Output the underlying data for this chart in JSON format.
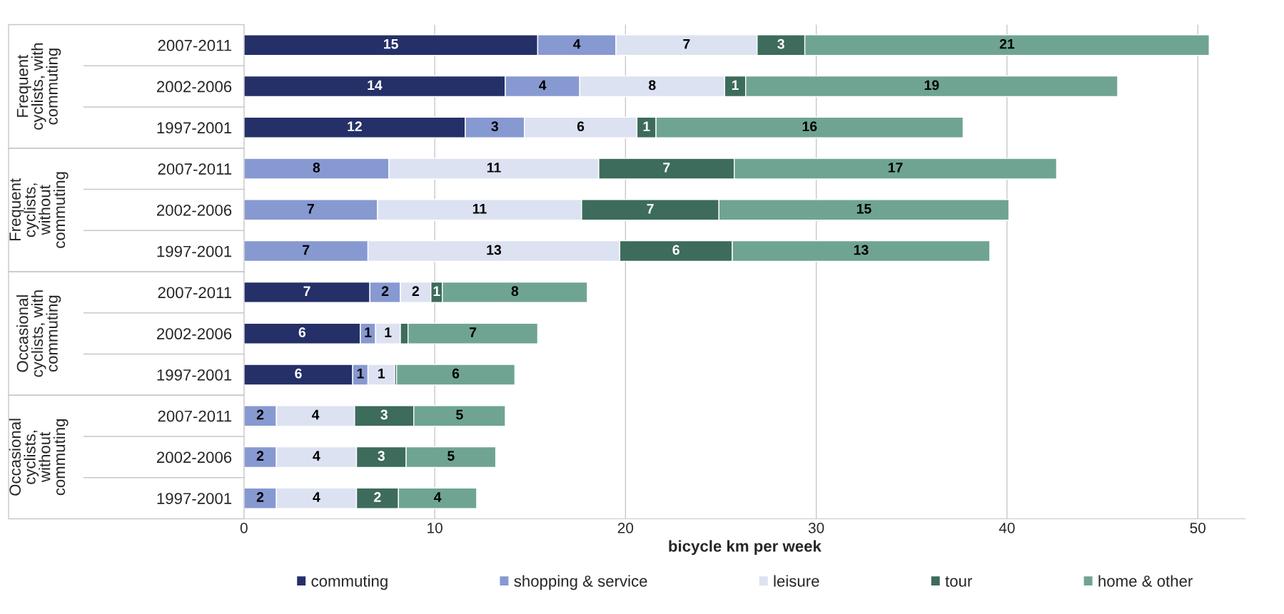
{
  "chart_data": {
    "type": "bar",
    "orientation": "horizontal",
    "stacked": true,
    "xlabel": "bicycle km per week",
    "categories": [
      "2007-2011",
      "2002-2006",
      "1997-2001",
      "2007-2011",
      "2002-2006",
      "1997-2001",
      "2007-2011",
      "2002-2006",
      "1997-2001",
      "2007-2011",
      "2002-2006",
      "1997-2001"
    ],
    "annotations": [
      "Frequent\ncyclists, with\ncommuting",
      "Frequent\ncyclists,\nwithout\ncommuting",
      "Occasional\ncyclists, with\ncommuting",
      "Occasional\ncyclists,\nwithout\ncommuting"
    ],
    "series": [
      {
        "name": "commuting",
        "color": "#253068",
        "values": [
          15.4,
          13.7,
          11.6,
          null,
          null,
          null,
          6.6,
          6.1,
          5.7,
          null,
          null,
          null
        ],
        "value_labels": [
          "15",
          "14",
          "12",
          null,
          null,
          null,
          "7",
          "6",
          "6",
          null,
          null,
          null
        ]
      },
      {
        "name": "shopping & service",
        "color": "#8799d1",
        "values": [
          4.1,
          3.9,
          3.1,
          7.6,
          7.0,
          6.5,
          1.6,
          0.8,
          0.8,
          1.7,
          1.7,
          1.7
        ],
        "value_labels": [
          "4",
          "4",
          "3",
          "8",
          "7",
          "7",
          "2",
          "1",
          "1",
          "2",
          "2",
          "2"
        ]
      },
      {
        "name": "leisure",
        "color": "#dde2f2",
        "values": [
          7.4,
          7.6,
          5.9,
          11.0,
          10.7,
          13.2,
          1.6,
          1.3,
          1.4,
          4.1,
          4.2,
          4.2
        ],
        "value_labels": [
          "7",
          "8",
          "6",
          "11",
          "11",
          "13",
          "2",
          "1",
          "1",
          "4",
          "4",
          "4"
        ]
      },
      {
        "name": "tour",
        "color": "#3d6b5c",
        "values": [
          2.5,
          1.1,
          1.0,
          7.1,
          7.2,
          5.9,
          0.6,
          0.4,
          0.1,
          3.1,
          2.6,
          2.2
        ],
        "value_labels": [
          "3",
          "1",
          "1",
          "7",
          "7",
          "6",
          "1",
          null,
          null,
          "3",
          "3",
          "2"
        ]
      },
      {
        "name": "home & other",
        "color": "#6fa493",
        "values": [
          21.2,
          19.5,
          16.1,
          16.9,
          15.2,
          13.5,
          7.6,
          6.8,
          6.2,
          4.8,
          4.7,
          4.1
        ],
        "value_labels": [
          "21",
          "19",
          "16",
          "17",
          "15",
          "13",
          "8",
          "7",
          "6",
          "5",
          "5",
          "4"
        ]
      }
    ],
    "xlim": [
      0,
      52.5
    ],
    "xticks": [
      0,
      10,
      20,
      30,
      40,
      50
    ],
    "grid": "x",
    "legend": "bottom"
  }
}
